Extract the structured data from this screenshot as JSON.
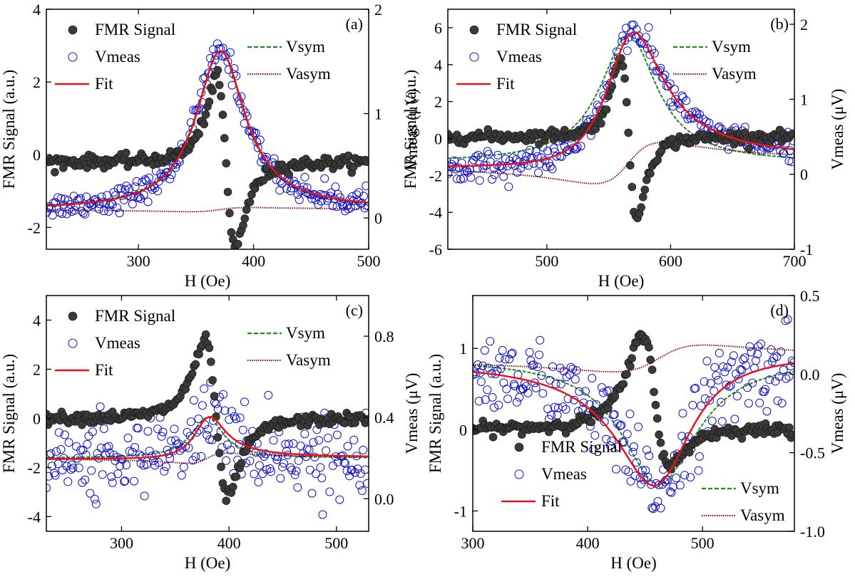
{
  "figure_colors": {
    "fmr": "#3a3a3a",
    "vmeas": "#1010c8",
    "fit": "#e8141c",
    "vsym": "#1f8a1f",
    "vasym": "#8b1010"
  },
  "chart_data": [
    {
      "type": "scatter",
      "panel": "(a)",
      "xlabel": "H (Oe)",
      "ylabel_left": "FMR Signal (a.u.)",
      "ylabel_right": "Vmeas (μV)",
      "xlim": [
        220,
        500
      ],
      "ylim_left": [
        -2.6,
        4
      ],
      "ylim_right": [
        -0.3,
        2
      ],
      "xticks": [
        "300",
        "400",
        "500"
      ],
      "yticks_left": [
        "-2",
        "0",
        "2",
        "4"
      ],
      "yticks_right": [
        "0",
        "1",
        "2"
      ],
      "legend_left": [
        "FMR Signal",
        "Vmeas",
        "Fit"
      ],
      "legend_right": [
        "Vsym",
        "Vasym"
      ],
      "fmr": {
        "h0": 376,
        "dh": 14,
        "baseline": -0.2,
        "amp": 5.5,
        "mix": 0.0
      },
      "fit": {
        "h0": 371,
        "w": 26,
        "sym_amp": 1.52,
        "asym_amp": 0.04,
        "offset": 0.08
      },
      "vmeas_noise": 0.06
    },
    {
      "type": "scatter",
      "panel": "(b)",
      "xlabel": "H (Oe)",
      "ylabel_left": "FMR Signal (a.u.)",
      "ylabel_right": "Vmeas (μV)",
      "xlim": [
        420,
        700
      ],
      "ylim_left": [
        -6,
        7
      ],
      "ylim_right": [
        -1,
        2.2
      ],
      "xticks": [
        "500",
        "600",
        "700"
      ],
      "yticks_left": [
        "-6",
        "-4",
        "-2",
        "0",
        "2",
        "4",
        "6"
      ],
      "yticks_right": [
        "-1",
        "0",
        "1",
        "2"
      ],
      "legend_left": [
        "FMR Signal",
        "Vmeas",
        "Fit"
      ],
      "legend_right": [
        "Vsym",
        "Vasym"
      ],
      "fmr": {
        "h0": 566,
        "dh": 11,
        "baseline": 0.1,
        "amp": 10.5,
        "mix": 0.0
      },
      "fit": {
        "h0": 566,
        "w": 28,
        "sym_amp": 1.7,
        "asym_amp": 0.55,
        "offset": 0.15
      },
      "vmeas_noise": 0.09
    },
    {
      "type": "scatter",
      "panel": "(c)",
      "xlabel": "H (Oe)",
      "ylabel_left": "FMR Signal (a.u.)",
      "ylabel_right": "Vmeas (μV)",
      "xlim": [
        230,
        530
      ],
      "ylim_left": [
        -4.6,
        5
      ],
      "ylim_right": [
        -0.16,
        1.0
      ],
      "xticks": [
        "300",
        "400",
        "500"
      ],
      "yticks_left": [
        "-4",
        "-2",
        "0",
        "2",
        "4"
      ],
      "yticks_right": [
        "0.0",
        "0.4",
        "0.8"
      ],
      "legend_left": [
        "FMR Signal",
        "Vmeas",
        "Fit"
      ],
      "legend_right": [
        "Vsym",
        "Vasym"
      ],
      "fmr": {
        "h0": 388,
        "dh": 18,
        "baseline": 0.0,
        "amp": 7.5,
        "mix": 0.0
      },
      "fit": {
        "h0": 380,
        "w": 18,
        "sym_amp": 0.2,
        "asym_amp": 0.05,
        "offset": 0.2
      },
      "vmeas_noise": 0.1
    },
    {
      "type": "scatter",
      "panel": "(d)",
      "xlabel": "H (Oe)",
      "ylabel_left": "FMR Signal (a.u.)",
      "ylabel_right": "Vmeas (μV)",
      "xlim": [
        300,
        580
      ],
      "ylim_left": [
        -1.25,
        1.65
      ],
      "ylim_right": [
        -1.0,
        0.5
      ],
      "xticks": [
        "300",
        "400",
        "500"
      ],
      "yticks_left": [
        "-1",
        "0",
        "1"
      ],
      "yticks_right": [
        "-1.0",
        "-0.5",
        "0.0",
        "0.5"
      ],
      "legend_left": [
        "FMR Signal",
        "Vmeas",
        "Fit"
      ],
      "legend_right": [
        "Vsym",
        "Vasym"
      ],
      "fmr": {
        "h0": 458,
        "dh": 20,
        "baseline": 0.0,
        "amp": 2.4,
        "mix": 0.2
      },
      "fit": {
        "h0": 462,
        "w": 40,
        "sym_amp": -0.8,
        "asym_amp": 0.17,
        "offset": 0.1
      },
      "vmeas_noise": 0.13
    }
  ]
}
